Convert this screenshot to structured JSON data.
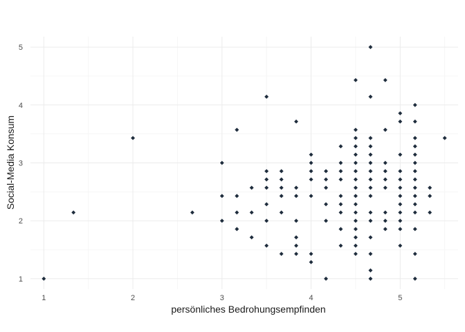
{
  "chart_data": {
    "type": "scatter",
    "title": "",
    "xlabel": "persönliches Bedrohungsempfinden",
    "ylabel": "Social-Media Konsum",
    "xlim": [
      0.85,
      5.65
    ],
    "ylim": [
      0.82,
      5.18
    ],
    "x_ticks": [
      1,
      2,
      3,
      4,
      5
    ],
    "y_ticks": [
      1,
      2,
      3,
      4,
      5
    ],
    "grid": true,
    "point_color": "#1f2d3d",
    "points": [
      [
        1.0,
        1.0
      ],
      [
        1.333,
        2.143
      ],
      [
        2.0,
        3.429
      ],
      [
        2.667,
        2.143
      ],
      [
        3.0,
        3.0
      ],
      [
        3.0,
        2.429
      ],
      [
        3.0,
        2.0
      ],
      [
        3.167,
        3.571
      ],
      [
        3.167,
        2.429
      ],
      [
        3.167,
        2.143
      ],
      [
        3.167,
        1.857
      ],
      [
        3.333,
        2.571
      ],
      [
        3.333,
        2.143
      ],
      [
        3.333,
        1.714
      ],
      [
        3.5,
        4.143
      ],
      [
        3.5,
        2.857
      ],
      [
        3.5,
        2.714
      ],
      [
        3.5,
        2.571
      ],
      [
        3.5,
        2.286
      ],
      [
        3.5,
        2.0
      ],
      [
        3.5,
        1.571
      ],
      [
        3.667,
        2.857
      ],
      [
        3.667,
        2.714
      ],
      [
        3.667,
        2.571
      ],
      [
        3.667,
        2.429
      ],
      [
        3.667,
        2.143
      ],
      [
        3.667,
        1.429
      ],
      [
        3.833,
        3.714
      ],
      [
        3.833,
        2.571
      ],
      [
        3.833,
        2.429
      ],
      [
        3.833,
        2.0
      ],
      [
        3.833,
        1.714
      ],
      [
        3.833,
        1.571
      ],
      [
        3.833,
        1.429
      ],
      [
        4.0,
        3.143
      ],
      [
        4.0,
        3.0
      ],
      [
        4.0,
        2.857
      ],
      [
        4.0,
        2.714
      ],
      [
        4.0,
        2.429
      ],
      [
        4.0,
        1.429
      ],
      [
        4.0,
        1.286
      ],
      [
        4.167,
        2.857
      ],
      [
        4.167,
        2.714
      ],
      [
        4.167,
        2.571
      ],
      [
        4.167,
        2.286
      ],
      [
        4.167,
        2.0
      ],
      [
        4.167,
        1.0
      ],
      [
        4.333,
        3.286
      ],
      [
        4.333,
        3.0
      ],
      [
        4.333,
        2.857
      ],
      [
        4.333,
        2.714
      ],
      [
        4.333,
        2.429
      ],
      [
        4.333,
        2.286
      ],
      [
        4.333,
        2.143
      ],
      [
        4.333,
        1.857
      ],
      [
        4.333,
        1.571
      ],
      [
        4.5,
        4.429
      ],
      [
        4.5,
        3.571
      ],
      [
        4.5,
        3.429
      ],
      [
        4.5,
        3.286
      ],
      [
        4.5,
        3.143
      ],
      [
        4.5,
        3.0
      ],
      [
        4.5,
        2.857
      ],
      [
        4.5,
        2.714
      ],
      [
        4.5,
        2.571
      ],
      [
        4.5,
        2.429
      ],
      [
        4.5,
        2.286
      ],
      [
        4.5,
        2.143
      ],
      [
        4.5,
        2.0
      ],
      [
        4.5,
        1.857
      ],
      [
        4.5,
        1.714
      ],
      [
        4.5,
        1.571
      ],
      [
        4.5,
        1.429
      ],
      [
        4.667,
        5.0
      ],
      [
        4.667,
        4.143
      ],
      [
        4.667,
        3.429
      ],
      [
        4.667,
        3.286
      ],
      [
        4.667,
        3.143
      ],
      [
        4.667,
        3.0
      ],
      [
        4.667,
        2.857
      ],
      [
        4.667,
        2.714
      ],
      [
        4.667,
        2.571
      ],
      [
        4.667,
        2.429
      ],
      [
        4.667,
        2.143
      ],
      [
        4.667,
        2.0
      ],
      [
        4.667,
        1.714
      ],
      [
        4.667,
        1.429
      ],
      [
        4.667,
        1.143
      ],
      [
        4.667,
        1.0
      ],
      [
        4.833,
        4.429
      ],
      [
        4.833,
        3.571
      ],
      [
        4.833,
        3.0
      ],
      [
        4.833,
        2.857
      ],
      [
        4.833,
        2.714
      ],
      [
        4.833,
        2.571
      ],
      [
        4.833,
        2.143
      ],
      [
        4.833,
        2.0
      ],
      [
        4.833,
        1.857
      ],
      [
        5.0,
        3.857
      ],
      [
        5.0,
        3.714
      ],
      [
        5.0,
        3.143
      ],
      [
        5.0,
        2.857
      ],
      [
        5.0,
        2.714
      ],
      [
        5.0,
        2.571
      ],
      [
        5.0,
        2.429
      ],
      [
        5.0,
        2.286
      ],
      [
        5.0,
        2.143
      ],
      [
        5.0,
        2.0
      ],
      [
        5.0,
        1.857
      ],
      [
        5.0,
        1.571
      ],
      [
        5.167,
        4.0
      ],
      [
        5.167,
        3.714
      ],
      [
        5.167,
        3.429
      ],
      [
        5.167,
        3.286
      ],
      [
        5.167,
        3.143
      ],
      [
        5.167,
        3.0
      ],
      [
        5.167,
        2.857
      ],
      [
        5.167,
        2.714
      ],
      [
        5.167,
        2.571
      ],
      [
        5.167,
        2.429
      ],
      [
        5.167,
        2.286
      ],
      [
        5.167,
        2.143
      ],
      [
        5.167,
        1.857
      ],
      [
        5.167,
        1.429
      ],
      [
        5.167,
        1.0
      ],
      [
        5.333,
        2.571
      ],
      [
        5.333,
        2.429
      ],
      [
        5.333,
        2.143
      ],
      [
        5.5,
        3.429
      ]
    ]
  }
}
